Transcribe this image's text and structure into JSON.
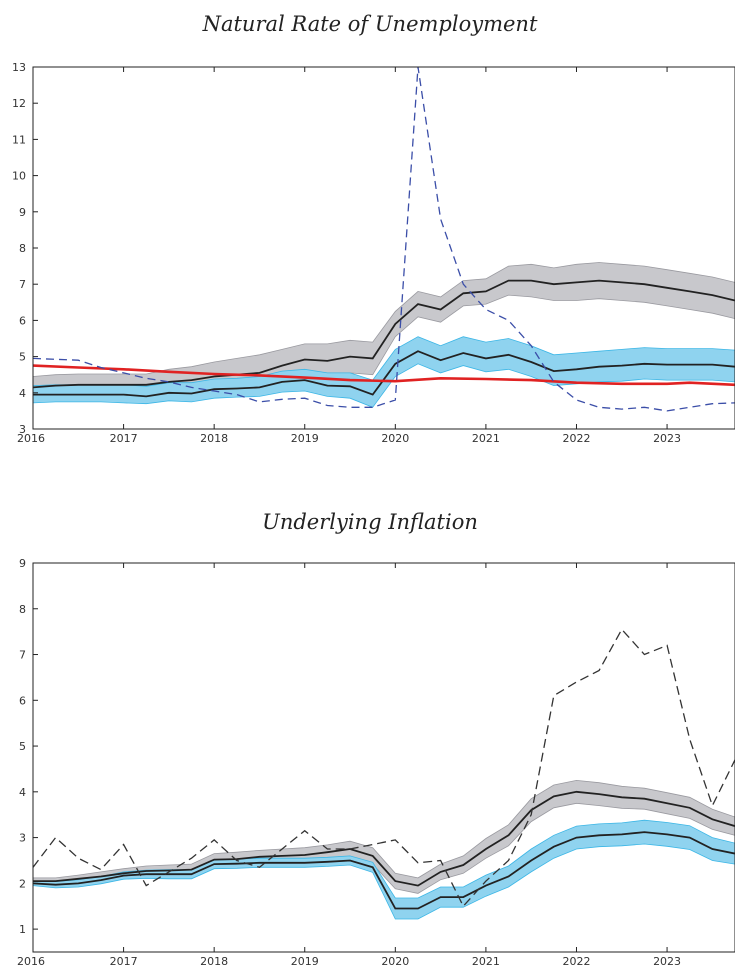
{
  "chart_data": [
    {
      "type": "line",
      "title": "Natural Rate of Unemployment",
      "xlabel": "",
      "ylabel": "",
      "xlim": [
        2016,
        2023.75
      ],
      "ylim": [
        3,
        13
      ],
      "xticks": [
        2016,
        2017,
        2018,
        2019,
        2020,
        2021,
        2022,
        2023
      ],
      "yticks": [
        3,
        4,
        5,
        6,
        7,
        8,
        9,
        10,
        11,
        12,
        13
      ],
      "grid": false,
      "legend": "none",
      "colors": {
        "black_band": "#c8c8cc",
        "blue_band": "#8fd3ef",
        "blue_band_edge": "#3bb6e6",
        "red": "#e02222",
        "dashed": "#3b4ea8"
      },
      "series": [
        {
          "style": "solid-black-with-gray-band",
          "x": [
            2016,
            2016.25,
            2016.5,
            2016.75,
            2017,
            2017.25,
            2017.5,
            2017.75,
            2018,
            2018.25,
            2018.5,
            2018.75,
            2019,
            2019.25,
            2019.5,
            2019.75,
            2020,
            2020.25,
            2020.5,
            2020.75,
            2021,
            2021.25,
            2021.5,
            2021.75,
            2022,
            2022.25,
            2022.5,
            2022.75,
            2023,
            2023.25,
            2023.5,
            2023.75
          ],
          "values": [
            4.15,
            4.2,
            4.22,
            4.22,
            4.22,
            4.22,
            4.3,
            4.35,
            4.45,
            4.5,
            4.55,
            4.75,
            4.92,
            4.88,
            5.0,
            4.95,
            5.9,
            6.45,
            6.3,
            6.75,
            6.8,
            7.1,
            7.1,
            7.0,
            7.05,
            7.1,
            7.05,
            7.0,
            6.9,
            6.8,
            6.7,
            6.55
          ],
          "upper": [
            4.45,
            4.5,
            4.52,
            4.52,
            4.52,
            4.52,
            4.65,
            4.72,
            4.85,
            4.95,
            5.05,
            5.2,
            5.35,
            5.35,
            5.45,
            5.4,
            6.25,
            6.8,
            6.65,
            7.1,
            7.15,
            7.5,
            7.55,
            7.45,
            7.55,
            7.6,
            7.55,
            7.5,
            7.4,
            7.3,
            7.2,
            7.05
          ],
          "lower": [
            3.85,
            3.9,
            3.92,
            3.92,
            3.92,
            3.92,
            3.95,
            3.98,
            4.05,
            4.08,
            4.1,
            4.3,
            4.5,
            4.45,
            4.55,
            4.5,
            5.55,
            6.1,
            5.95,
            6.4,
            6.45,
            6.7,
            6.65,
            6.55,
            6.55,
            6.6,
            6.55,
            6.5,
            6.4,
            6.3,
            6.2,
            6.05
          ]
        },
        {
          "style": "solid-black-with-blue-band",
          "x": [
            2016,
            2016.25,
            2016.5,
            2016.75,
            2017,
            2017.25,
            2017.5,
            2017.75,
            2018,
            2018.25,
            2018.5,
            2018.75,
            2019,
            2019.25,
            2019.5,
            2019.75,
            2020,
            2020.25,
            2020.5,
            2020.75,
            2021,
            2021.25,
            2021.5,
            2021.75,
            2022,
            2022.25,
            2022.5,
            2022.75,
            2023,
            2023.25,
            2023.5,
            2023.75
          ],
          "values": [
            3.95,
            3.95,
            3.95,
            3.95,
            3.95,
            3.9,
            4.0,
            3.98,
            4.1,
            4.12,
            4.15,
            4.3,
            4.35,
            4.2,
            4.18,
            3.95,
            4.8,
            5.15,
            4.9,
            5.1,
            4.95,
            5.05,
            4.85,
            4.6,
            4.65,
            4.72,
            4.75,
            4.8,
            4.78,
            4.78,
            4.78,
            4.72
          ],
          "upper": [
            4.2,
            4.22,
            4.22,
            4.22,
            4.22,
            4.18,
            4.28,
            4.28,
            4.38,
            4.4,
            4.45,
            4.6,
            4.65,
            4.55,
            4.55,
            4.35,
            5.2,
            5.55,
            5.3,
            5.55,
            5.4,
            5.5,
            5.3,
            5.05,
            5.1,
            5.15,
            5.2,
            5.25,
            5.22,
            5.22,
            5.22,
            5.18
          ],
          "lower": [
            3.72,
            3.75,
            3.75,
            3.75,
            3.72,
            3.7,
            3.78,
            3.75,
            3.85,
            3.88,
            3.9,
            4.02,
            4.05,
            3.9,
            3.85,
            3.6,
            4.45,
            4.8,
            4.55,
            4.75,
            4.58,
            4.65,
            4.45,
            4.2,
            4.25,
            4.3,
            4.32,
            4.38,
            4.35,
            4.35,
            4.35,
            4.3
          ]
        },
        {
          "style": "solid-red",
          "x": [
            2016,
            2016.5,
            2017,
            2017.5,
            2018,
            2018.5,
            2019,
            2019.5,
            2020,
            2020.5,
            2021,
            2021.5,
            2022,
            2022.5,
            2023,
            2023.25,
            2023.75
          ],
          "values": [
            4.75,
            4.7,
            4.65,
            4.58,
            4.52,
            4.48,
            4.42,
            4.35,
            4.32,
            4.4,
            4.38,
            4.35,
            4.28,
            4.25,
            4.25,
            4.28,
            4.22
          ]
        },
        {
          "style": "dashed-blue",
          "x": [
            2016,
            2016.5,
            2016.75,
            2017,
            2017.25,
            2017.5,
            2017.75,
            2018,
            2018.25,
            2018.5,
            2018.75,
            2019,
            2019.25,
            2019.5,
            2019.75,
            2020,
            2020.25,
            2020.5,
            2020.75,
            2021,
            2021.25,
            2021.5,
            2021.75,
            2022,
            2022.25,
            2022.5,
            2022.75,
            2023,
            2023.25,
            2023.5,
            2023.75
          ],
          "values": [
            4.95,
            4.9,
            4.7,
            4.55,
            4.4,
            4.3,
            4.15,
            4.05,
            3.95,
            3.75,
            3.82,
            3.85,
            3.65,
            3.6,
            3.6,
            3.8,
            13.0,
            8.8,
            7.0,
            6.3,
            6.0,
            5.3,
            4.3,
            3.8,
            3.6,
            3.55,
            3.6,
            3.5,
            3.6,
            3.7,
            3.72
          ]
        }
      ]
    },
    {
      "type": "line",
      "title": "Underlying Inflation",
      "xlabel": "",
      "ylabel": "",
      "xlim": [
        2016,
        2023.75
      ],
      "ylim": [
        0.5,
        9
      ],
      "xticks": [
        2016,
        2017,
        2018,
        2019,
        2020,
        2021,
        2022,
        2023
      ],
      "yticks": [
        1,
        2,
        3,
        4,
        5,
        6,
        7,
        8,
        9
      ],
      "grid": false,
      "legend": "none",
      "colors": {
        "black_band": "#c8c8cc",
        "blue_band": "#8fd3ef",
        "blue_band_edge": "#3bb6e6",
        "dashed": "#333333"
      },
      "series": [
        {
          "style": "solid-black-with-gray-band",
          "x": [
            2016,
            2016.25,
            2016.5,
            2016.75,
            2017,
            2017.25,
            2017.5,
            2017.75,
            2018,
            2018.25,
            2018.5,
            2018.75,
            2019,
            2019.25,
            2019.5,
            2019.75,
            2020,
            2020.25,
            2020.5,
            2020.75,
            2021,
            2021.25,
            2021.5,
            2021.75,
            2022,
            2022.25,
            2022.5,
            2022.75,
            2023,
            2023.25,
            2023.5,
            2023.75
          ],
          "values": [
            2.05,
            2.05,
            2.1,
            2.15,
            2.22,
            2.27,
            2.28,
            2.3,
            2.52,
            2.53,
            2.58,
            2.6,
            2.62,
            2.68,
            2.75,
            2.6,
            2.05,
            1.95,
            2.25,
            2.4,
            2.75,
            3.05,
            3.6,
            3.9,
            4.0,
            3.95,
            3.88,
            3.85,
            3.75,
            3.65,
            3.4,
            3.25
          ],
          "upper": [
            2.12,
            2.12,
            2.18,
            2.25,
            2.32,
            2.38,
            2.4,
            2.42,
            2.65,
            2.68,
            2.72,
            2.75,
            2.78,
            2.84,
            2.92,
            2.78,
            2.22,
            2.12,
            2.42,
            2.6,
            2.98,
            3.28,
            3.85,
            4.15,
            4.25,
            4.2,
            4.12,
            4.08,
            3.98,
            3.88,
            3.62,
            3.45
          ],
          "lower": [
            1.98,
            1.98,
            2.02,
            2.05,
            2.12,
            2.17,
            2.16,
            2.18,
            2.4,
            2.4,
            2.45,
            2.45,
            2.46,
            2.52,
            2.58,
            2.42,
            1.88,
            1.78,
            2.08,
            2.22,
            2.55,
            2.82,
            3.35,
            3.65,
            3.75,
            3.7,
            3.64,
            3.62,
            3.52,
            3.42,
            3.18,
            3.05
          ]
        },
        {
          "style": "solid-black-with-blue-band",
          "x": [
            2016,
            2016.25,
            2016.5,
            2016.75,
            2017,
            2017.25,
            2017.5,
            2017.75,
            2018,
            2018.25,
            2018.5,
            2018.75,
            2019,
            2019.25,
            2019.5,
            2019.75,
            2020,
            2020.25,
            2020.5,
            2020.75,
            2021,
            2021.25,
            2021.5,
            2021.75,
            2022,
            2022.25,
            2022.5,
            2022.75,
            2023,
            2023.25,
            2023.5,
            2023.75
          ],
          "values": [
            2.0,
            1.97,
            2.0,
            2.07,
            2.17,
            2.2,
            2.2,
            2.2,
            2.42,
            2.43,
            2.45,
            2.45,
            2.45,
            2.47,
            2.5,
            2.35,
            1.45,
            1.45,
            1.7,
            1.7,
            1.95,
            2.15,
            2.5,
            2.8,
            3.0,
            3.05,
            3.07,
            3.12,
            3.07,
            3.0,
            2.75,
            2.65
          ],
          "upper": [
            2.05,
            2.04,
            2.08,
            2.15,
            2.25,
            2.29,
            2.3,
            2.3,
            2.52,
            2.53,
            2.55,
            2.55,
            2.55,
            2.57,
            2.6,
            2.46,
            1.68,
            1.68,
            1.92,
            1.92,
            2.18,
            2.38,
            2.75,
            3.05,
            3.25,
            3.3,
            3.32,
            3.38,
            3.33,
            3.26,
            3.0,
            2.88
          ],
          "lower": [
            1.95,
            1.9,
            1.92,
            1.99,
            2.09,
            2.11,
            2.1,
            2.1,
            2.32,
            2.33,
            2.35,
            2.35,
            2.35,
            2.37,
            2.4,
            2.24,
            1.22,
            1.22,
            1.48,
            1.48,
            1.72,
            1.92,
            2.25,
            2.55,
            2.75,
            2.8,
            2.82,
            2.86,
            2.81,
            2.74,
            2.5,
            2.42
          ]
        },
        {
          "style": "dashed-black",
          "x": [
            2016,
            2016.25,
            2016.5,
            2016.75,
            2017,
            2017.25,
            2017.5,
            2017.75,
            2018,
            2018.25,
            2018.5,
            2018.75,
            2019,
            2019.25,
            2019.5,
            2019.75,
            2020,
            2020.25,
            2020.5,
            2020.75,
            2021,
            2021.25,
            2021.5,
            2021.75,
            2022,
            2022.25,
            2022.5,
            2022.75,
            2023,
            2023.25,
            2023.5,
            2023.75
          ],
          "values": [
            2.35,
            3.0,
            2.55,
            2.3,
            2.85,
            1.95,
            2.25,
            2.55,
            2.95,
            2.5,
            2.35,
            2.75,
            3.15,
            2.75,
            2.75,
            2.85,
            2.95,
            2.45,
            2.5,
            1.5,
            2.05,
            2.5,
            3.5,
            6.1,
            6.4,
            6.65,
            7.55,
            7.0,
            7.2,
            5.15,
            3.7,
            4.7
          ]
        }
      ]
    }
  ]
}
